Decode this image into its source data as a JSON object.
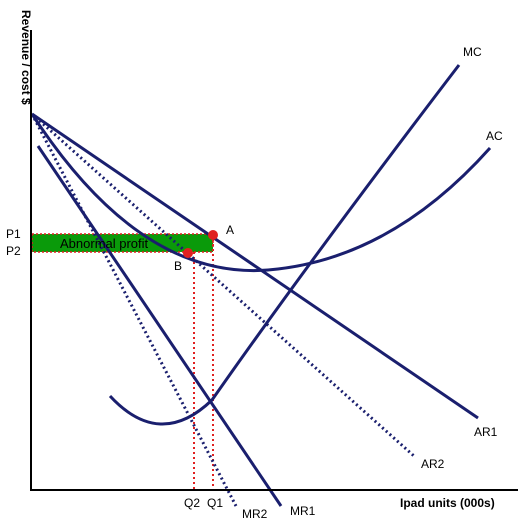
{
  "y_axis_label": "Revenue / cost $",
  "x_axis_label": "Ipad units (000s)",
  "curves": {
    "mc": "MC",
    "ac": "AC",
    "ar1": "AR1",
    "ar2": "AR2",
    "mr1": "MR1",
    "mr2": "MR2"
  },
  "price_labels": {
    "p1": "P1",
    "p2": "P2"
  },
  "quantity_labels": {
    "q1": "Q1",
    "q2": "Q2"
  },
  "points": {
    "a": "A",
    "b": "B"
  },
  "area_label": "Abnormal profit",
  "colors": {
    "curve": "#1a1f6e",
    "profit_fill": "#0a9a0a",
    "guide": "#e02020",
    "point": "#e02020",
    "axis": "#000000"
  }
}
